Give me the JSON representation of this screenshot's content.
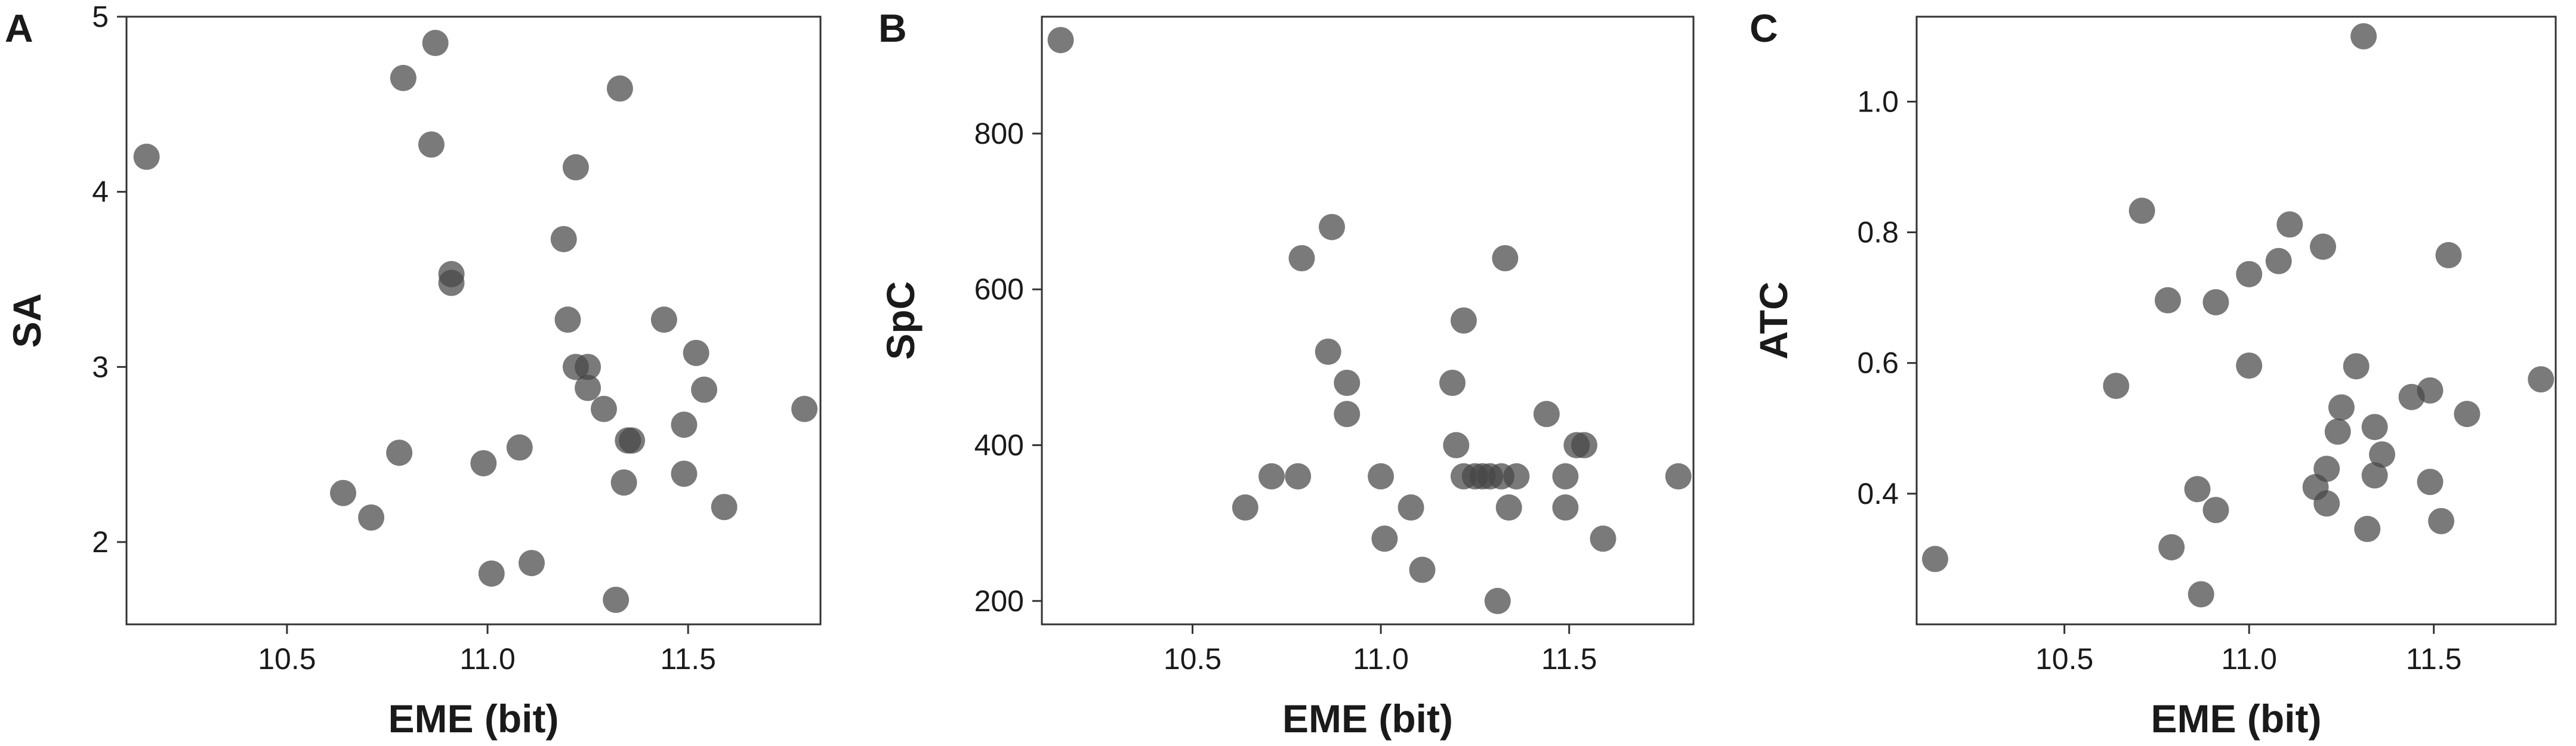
{
  "chart_data": [
    {
      "type": "scatter",
      "panel_label": "A",
      "xlabel": "EME (bit)",
      "ylabel": "SA",
      "xlim": [
        10.1,
        11.83
      ],
      "ylim": [
        1.53,
        5.0
      ],
      "xticks": [
        10.5,
        11.0,
        11.5
      ],
      "xtick_labels": [
        "10.5",
        "11.0",
        "11.5"
      ],
      "yticks": [
        2,
        3,
        4,
        5
      ],
      "ytick_labels": [
        "2",
        "3",
        "4",
        "5"
      ],
      "grid": false,
      "marker_color": "#464646",
      "points": [
        [
          10.15,
          4.2
        ],
        [
          10.64,
          2.28
        ],
        [
          10.71,
          2.14
        ],
        [
          10.78,
          2.51
        ],
        [
          10.79,
          4.65
        ],
        [
          10.86,
          4.27
        ],
        [
          10.87,
          4.85
        ],
        [
          10.91,
          3.53
        ],
        [
          10.91,
          3.48
        ],
        [
          10.99,
          2.45
        ],
        [
          11.01,
          1.82
        ],
        [
          11.08,
          2.54
        ],
        [
          11.11,
          1.88
        ],
        [
          11.19,
          3.73
        ],
        [
          11.2,
          3.27
        ],
        [
          11.22,
          4.14
        ],
        [
          11.22,
          3.0
        ],
        [
          11.25,
          3.0
        ],
        [
          11.25,
          2.88
        ],
        [
          11.29,
          2.76
        ],
        [
          11.32,
          1.67
        ],
        [
          11.33,
          4.59
        ],
        [
          11.34,
          2.34
        ],
        [
          11.35,
          2.58
        ],
        [
          11.36,
          2.58
        ],
        [
          11.44,
          3.27
        ],
        [
          11.49,
          2.67
        ],
        [
          11.49,
          2.39
        ],
        [
          11.52,
          3.08
        ],
        [
          11.54,
          2.87
        ],
        [
          11.59,
          2.2
        ],
        [
          11.79,
          2.76
        ]
      ]
    },
    {
      "type": "scatter",
      "panel_label": "B",
      "xlabel": "EME (bit)",
      "ylabel": "SpC",
      "xlim": [
        10.1,
        11.83
      ],
      "ylim": [
        170,
        950
      ],
      "xticks": [
        10.5,
        11.0,
        11.5
      ],
      "xtick_labels": [
        "10.5",
        "11.0",
        "11.5"
      ],
      "yticks": [
        200,
        400,
        600,
        800
      ],
      "ytick_labels": [
        "200",
        "400",
        "600",
        "800"
      ],
      "grid": false,
      "marker_color": "#464646",
      "points": [
        [
          10.15,
          920
        ],
        [
          10.64,
          320
        ],
        [
          10.71,
          360
        ],
        [
          10.78,
          360
        ],
        [
          10.79,
          640
        ],
        [
          10.86,
          520
        ],
        [
          10.87,
          680
        ],
        [
          10.91,
          480
        ],
        [
          10.91,
          440
        ],
        [
          11.0,
          360
        ],
        [
          11.01,
          280
        ],
        [
          11.08,
          320
        ],
        [
          11.11,
          240
        ],
        [
          11.19,
          480
        ],
        [
          11.2,
          400
        ],
        [
          11.22,
          560
        ],
        [
          11.22,
          360
        ],
        [
          11.25,
          360
        ],
        [
          11.27,
          360
        ],
        [
          11.29,
          360
        ],
        [
          11.31,
          200
        ],
        [
          11.32,
          360
        ],
        [
          11.33,
          640
        ],
        [
          11.34,
          320
        ],
        [
          11.36,
          360
        ],
        [
          11.44,
          440
        ],
        [
          11.49,
          360
        ],
        [
          11.49,
          320
        ],
        [
          11.52,
          400
        ],
        [
          11.54,
          400
        ],
        [
          11.59,
          280
        ],
        [
          11.79,
          360
        ]
      ]
    },
    {
      "type": "scatter",
      "panel_label": "C",
      "xlabel": "EME (bit)",
      "ylabel": "ATC",
      "xlim": [
        10.1,
        11.83
      ],
      "ylim": [
        0.2,
        1.13
      ],
      "xticks": [
        10.5,
        11.0,
        11.5
      ],
      "xtick_labels": [
        "10.5",
        "11.0",
        "11.5"
      ],
      "yticks": [
        0.4,
        0.6,
        0.8,
        1.0
      ],
      "ytick_labels": [
        "0.4",
        "0.6",
        "0.8",
        "1.0"
      ],
      "grid": false,
      "marker_color": "#464646",
      "points": [
        [
          10.15,
          0.3
        ],
        [
          10.64,
          0.565
        ],
        [
          10.71,
          0.833
        ],
        [
          10.78,
          0.696
        ],
        [
          10.79,
          0.318
        ],
        [
          10.86,
          0.407
        ],
        [
          10.87,
          0.246
        ],
        [
          10.91,
          0.693
        ],
        [
          10.91,
          0.375
        ],
        [
          11.0,
          0.596
        ],
        [
          11.0,
          0.736
        ],
        [
          11.08,
          0.756
        ],
        [
          11.11,
          0.812
        ],
        [
          11.18,
          0.41
        ],
        [
          11.2,
          0.778
        ],
        [
          11.21,
          0.438
        ],
        [
          11.21,
          0.385
        ],
        [
          11.24,
          0.495
        ],
        [
          11.25,
          0.532
        ],
        [
          11.29,
          0.595
        ],
        [
          11.31,
          1.1
        ],
        [
          11.32,
          0.346
        ],
        [
          11.34,
          0.502
        ],
        [
          11.34,
          0.428
        ],
        [
          11.36,
          0.46
        ],
        [
          11.44,
          0.548
        ],
        [
          11.49,
          0.558
        ],
        [
          11.49,
          0.418
        ],
        [
          11.52,
          0.358
        ],
        [
          11.54,
          0.765
        ],
        [
          11.59,
          0.522
        ],
        [
          11.79,
          0.575
        ]
      ]
    }
  ]
}
